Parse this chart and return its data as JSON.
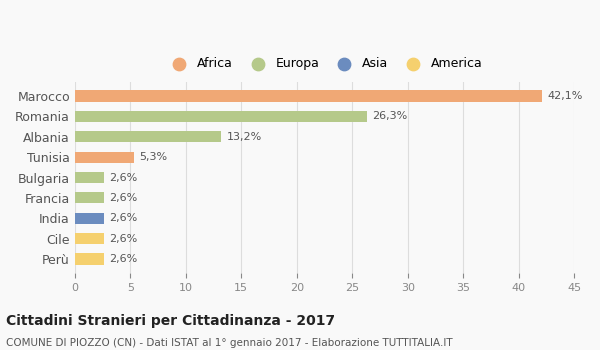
{
  "categories": [
    "Marocco",
    "Romania",
    "Albania",
    "Tunisia",
    "Bulgaria",
    "Francia",
    "India",
    "Cile",
    "Perù"
  ],
  "values": [
    42.1,
    26.3,
    13.2,
    5.3,
    2.6,
    2.6,
    2.6,
    2.6,
    2.6
  ],
  "labels": [
    "42,1%",
    "26,3%",
    "13,2%",
    "5,3%",
    "2,6%",
    "2,6%",
    "2,6%",
    "2,6%",
    "2,6%"
  ],
  "colors": [
    "#f0a875",
    "#b5c98a",
    "#b5c98a",
    "#f0a875",
    "#b5c98a",
    "#b5c98a",
    "#6b8cbf",
    "#f5d06e",
    "#f5d06e"
  ],
  "legend": [
    {
      "label": "Africa",
      "color": "#f0a875"
    },
    {
      "label": "Europa",
      "color": "#b5c98a"
    },
    {
      "label": "Asia",
      "color": "#6b8cbf"
    },
    {
      "label": "America",
      "color": "#f5d06e"
    }
  ],
  "xlim": [
    0,
    45
  ],
  "xticks": [
    0,
    5,
    10,
    15,
    20,
    25,
    30,
    35,
    40,
    45
  ],
  "title": "Cittadini Stranieri per Cittadinanza - 2017",
  "subtitle": "COMUNE DI PIOZZO (CN) - Dati ISTAT al 1° gennaio 2017 - Elaborazione TUTTITALIA.IT",
  "background_color": "#f9f9f9",
  "grid_color": "#dddddd",
  "bar_height": 0.55
}
